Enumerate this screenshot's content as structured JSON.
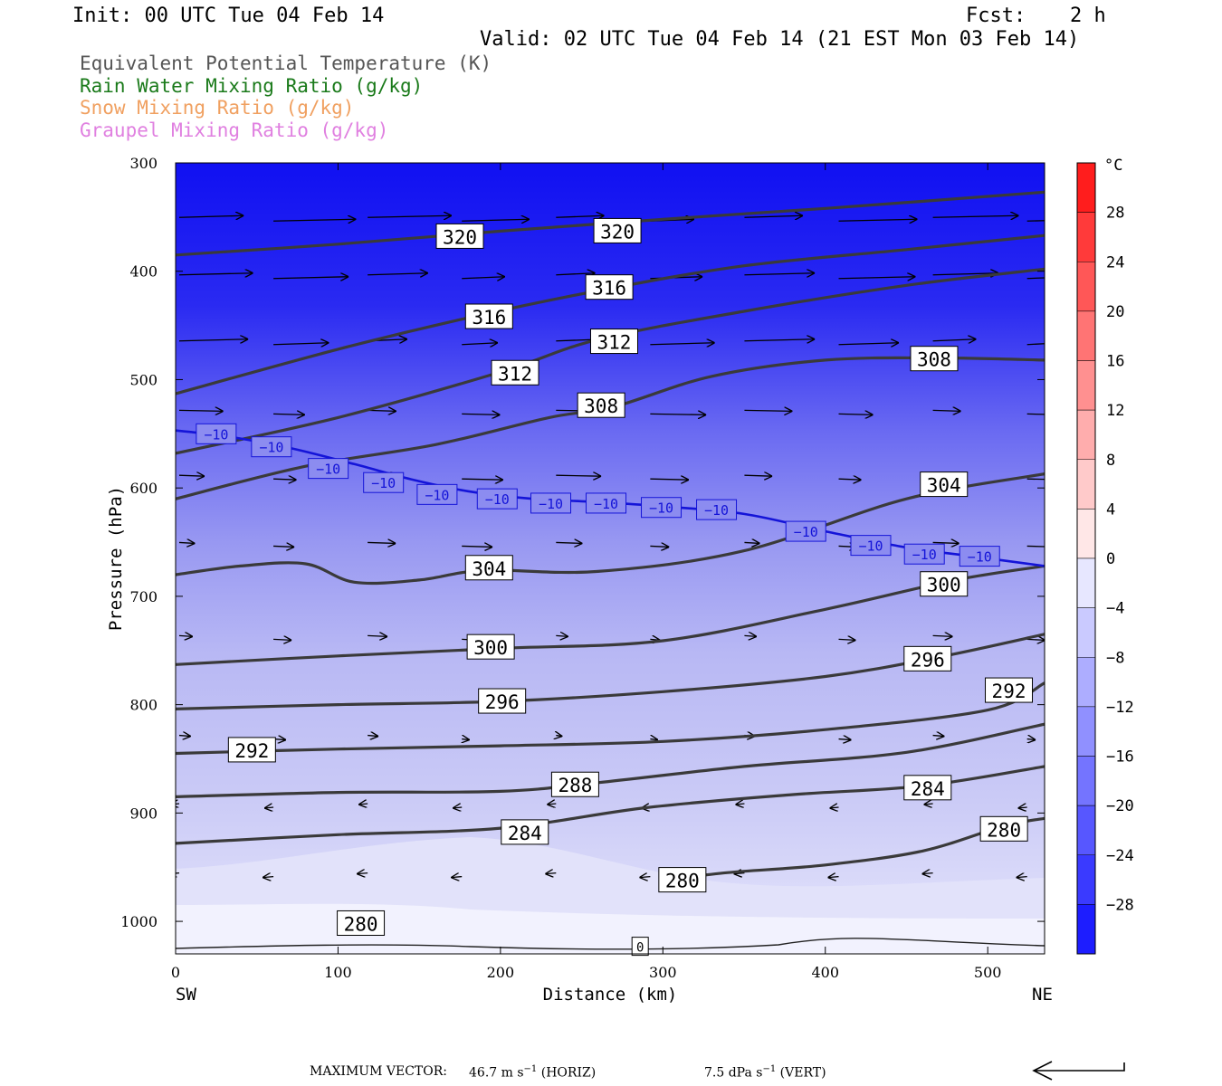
{
  "header": {
    "init": "Init: 00 UTC Tue 04 Feb 14",
    "fcst_label": "Fcst:",
    "fcst_value": "2 h",
    "valid": "Valid: 02 UTC Tue 04 Feb 14 (21 EST Mon 03 Feb 14)"
  },
  "legend": [
    {
      "label": "Equivalent Potential Temperature (K)",
      "color": "#555555"
    },
    {
      "label": "Rain Water Mixing Ratio (g/kg)",
      "color": "#1a7a1a"
    },
    {
      "label": "Snow Mixing Ratio (g/kg)",
      "color": "#f0a060"
    },
    {
      "label": "Graupel Mixing Ratio (g/kg)",
      "color": "#e080e0"
    }
  ],
  "chart_data": {
    "type": "cross-section",
    "ylabel": "Pressure (hPa)",
    "xlabel": "Distance (km)",
    "x_left_label": "SW",
    "x_right_label": "NE",
    "xlim": [
      0,
      535
    ],
    "ylim": [
      300,
      1030
    ],
    "x_ticks": [
      "0",
      "100",
      "200",
      "300",
      "400",
      "500"
    ],
    "x_tick_values": [
      0,
      100,
      200,
      300,
      400,
      500
    ],
    "y_ticks": [
      "300",
      "400",
      "500",
      "600",
      "700",
      "800",
      "900",
      "1000"
    ],
    "y_tick_values": [
      300,
      400,
      500,
      600,
      700,
      800,
      900,
      1000
    ],
    "colorbar": {
      "unit": "°C",
      "labels": [
        "28",
        "24",
        "20",
        "16",
        "12",
        "8",
        "4",
        "0",
        "−4",
        "−8",
        "−12",
        "−16",
        "−20",
        "−24",
        "−28"
      ],
      "values": [
        28,
        24,
        20,
        16,
        12,
        8,
        4,
        0,
        -4,
        -8,
        -12,
        -16,
        -20,
        -24,
        -28
      ],
      "range": [
        -32,
        32
      ]
    },
    "theta_e_contours": [
      {
        "value": 320,
        "points": [
          [
            0,
            385
          ],
          [
            100,
            375
          ],
          [
            200,
            363
          ],
          [
            300,
            352
          ],
          [
            400,
            342
          ],
          [
            535,
            327
          ]
        ],
        "labels": [
          {
            "text": "320",
            "x": 175,
            "p": 368
          },
          {
            "text": "320",
            "x": 272,
            "p": 363
          }
        ]
      },
      {
        "value": 316,
        "points": [
          [
            0,
            513
          ],
          [
            100,
            472
          ],
          [
            180,
            443
          ],
          [
            260,
            418
          ],
          [
            350,
            395
          ],
          [
            450,
            380
          ],
          [
            535,
            367
          ]
        ],
        "labels": [
          {
            "text": "316",
            "x": 193,
            "p": 442
          },
          {
            "text": "316",
            "x": 267,
            "p": 415
          }
        ]
      },
      {
        "value": 312,
        "points": [
          [
            0,
            568
          ],
          [
            100,
            535
          ],
          [
            200,
            493
          ],
          [
            260,
            463
          ],
          [
            350,
            437
          ],
          [
            450,
            413
          ],
          [
            535,
            398
          ]
        ],
        "labels": [
          {
            "text": "312",
            "x": 209,
            "p": 494
          },
          {
            "text": "312",
            "x": 270,
            "p": 465
          }
        ]
      },
      {
        "value": 308,
        "points": [
          [
            0,
            610
          ],
          [
            80,
            580
          ],
          [
            160,
            560
          ],
          [
            230,
            535
          ],
          [
            270,
            525
          ],
          [
            330,
            497
          ],
          [
            400,
            482
          ],
          [
            470,
            480
          ],
          [
            535,
            482
          ]
        ],
        "labels": [
          {
            "text": "308",
            "x": 262,
            "p": 524
          },
          {
            "text": "308",
            "x": 467,
            "p": 481
          }
        ]
      },
      {
        "value": 304,
        "points": [
          [
            0,
            680
          ],
          [
            40,
            672
          ],
          [
            80,
            670
          ],
          [
            110,
            687
          ],
          [
            150,
            685
          ],
          [
            190,
            676
          ],
          [
            260,
            677
          ],
          [
            350,
            658
          ],
          [
            450,
            610
          ],
          [
            535,
            587
          ]
        ],
        "labels": [
          {
            "text": "304",
            "x": 193,
            "p": 674
          },
          {
            "text": "304",
            "x": 473,
            "p": 597
          }
        ]
      },
      {
        "value": 300,
        "points": [
          [
            0,
            763
          ],
          [
            100,
            755
          ],
          [
            200,
            748
          ],
          [
            300,
            741
          ],
          [
            400,
            712
          ],
          [
            480,
            685
          ],
          [
            535,
            672
          ]
        ],
        "labels": [
          {
            "text": "300",
            "x": 194,
            "p": 747
          },
          {
            "text": "300",
            "x": 473,
            "p": 689
          }
        ]
      },
      {
        "value": 296,
        "points": [
          [
            0,
            804
          ],
          [
            100,
            800
          ],
          [
            200,
            797
          ],
          [
            300,
            788
          ],
          [
            400,
            774
          ],
          [
            470,
            756
          ],
          [
            535,
            735
          ]
        ],
        "labels": [
          {
            "text": "296",
            "x": 201,
            "p": 797
          },
          {
            "text": "296",
            "x": 463,
            "p": 758
          }
        ]
      },
      {
        "value": 292,
        "points": [
          [
            0,
            845
          ],
          [
            100,
            841
          ],
          [
            200,
            838
          ],
          [
            300,
            834
          ],
          [
            400,
            823
          ],
          [
            500,
            805
          ],
          [
            535,
            780
          ]
        ],
        "labels": [
          {
            "text": "292",
            "x": 47,
            "p": 842
          },
          {
            "text": "292",
            "x": 513,
            "p": 787
          }
        ]
      },
      {
        "value": 288,
        "points": [
          [
            0,
            885
          ],
          [
            100,
            881
          ],
          [
            200,
            880
          ],
          [
            260,
            872
          ],
          [
            350,
            857
          ],
          [
            450,
            844
          ],
          [
            535,
            818
          ]
        ],
        "labels": [
          {
            "text": "288",
            "x": 246,
            "p": 874
          }
        ]
      },
      {
        "value": 284,
        "points": [
          [
            0,
            928
          ],
          [
            100,
            920
          ],
          [
            200,
            914
          ],
          [
            290,
            895
          ],
          [
            380,
            883
          ],
          [
            460,
            875
          ],
          [
            535,
            857
          ]
        ],
        "labels": [
          {
            "text": "284",
            "x": 215,
            "p": 918
          },
          {
            "text": "284",
            "x": 463,
            "p": 877
          }
        ]
      },
      {
        "value": 280,
        "points": [
          [
            300,
            962
          ],
          [
            340,
            955
          ],
          [
            400,
            948
          ],
          [
            460,
            935
          ],
          [
            510,
            912
          ],
          [
            535,
            905
          ]
        ],
        "labels": [
          {
            "text": "280",
            "x": 312,
            "p": 962
          },
          {
            "text": "280",
            "x": 510,
            "p": 915
          },
          {
            "text": "280",
            "x": 114,
            "p": 1002
          }
        ]
      }
    ],
    "temperature_contour": {
      "value": -10,
      "label": "−10",
      "points": [
        [
          0,
          547
        ],
        [
          30,
          552
        ],
        [
          70,
          563
        ],
        [
          110,
          578
        ],
        [
          145,
          592
        ],
        [
          180,
          603
        ],
        [
          220,
          610
        ],
        [
          260,
          613
        ],
        [
          300,
          617
        ],
        [
          350,
          624
        ],
        [
          400,
          640
        ],
        [
          450,
          655
        ],
        [
          490,
          663
        ],
        [
          535,
          672
        ]
      ],
      "label_positions": [
        [
          25,
          550
        ],
        [
          59,
          562
        ],
        [
          94,
          582
        ],
        [
          128,
          595
        ],
        [
          161,
          606
        ],
        [
          198,
          610
        ],
        [
          231,
          614
        ],
        [
          265,
          614
        ],
        [
          299,
          618
        ],
        [
          333,
          620
        ],
        [
          388,
          640
        ],
        [
          428,
          653
        ],
        [
          461,
          661
        ],
        [
          495,
          663
        ]
      ]
    },
    "wind_vectors_note": "Horizontal and vertical circulation vectors",
    "zero_label": "0"
  },
  "footer": {
    "max_vector_label": "MAXIMUM VECTOR:",
    "horiz_value": "46.7 m s",
    "horiz_exp": "−1",
    "horiz_suffix": "(HORIZ)",
    "vert_value": "7.5 dPa s",
    "vert_exp": "−1",
    "vert_suffix": "(VERT)"
  }
}
